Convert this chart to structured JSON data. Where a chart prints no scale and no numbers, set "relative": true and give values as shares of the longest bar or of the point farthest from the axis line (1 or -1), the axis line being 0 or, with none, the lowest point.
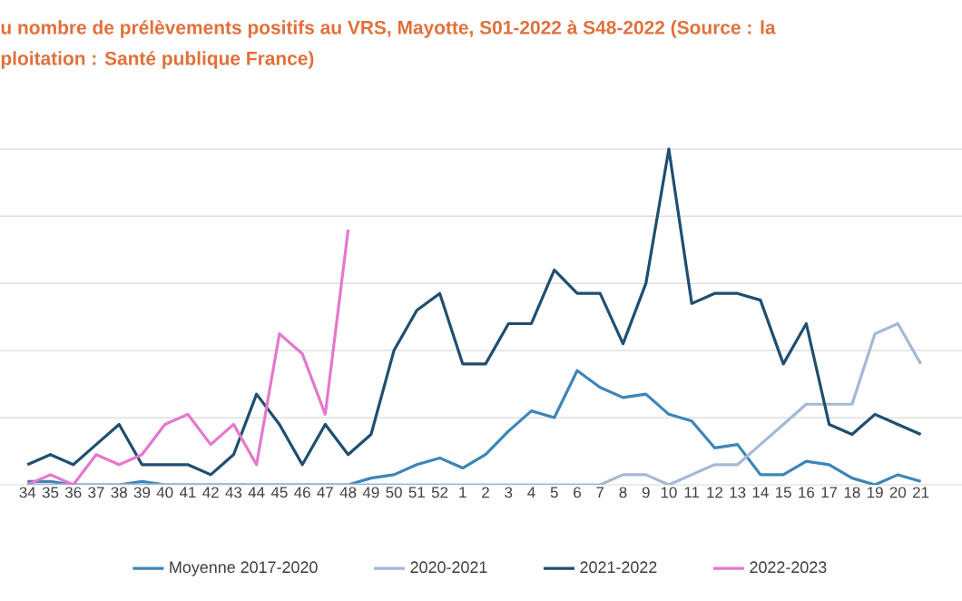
{
  "chart_data": {
    "type": "line",
    "title": "u nombre de prélèvements positifs au VRS, Mayotte, S01-2022 à S48-2022 (Source : la",
    "subtitle": "ploitation : Santé publique France)",
    "categories": [
      "34",
      "35",
      "36",
      "37",
      "38",
      "39",
      "40",
      "41",
      "42",
      "43",
      "44",
      "45",
      "46",
      "47",
      "48",
      "49",
      "50",
      "51",
      "52",
      "1",
      "2",
      "3",
      "4",
      "5",
      "6",
      "7",
      "8",
      "9",
      "10",
      "11",
      "12",
      "13",
      "14",
      "15",
      "16",
      "17",
      "18",
      "19",
      "20",
      "21"
    ],
    "relative": true,
    "grid": "y",
    "legend": "bottom",
    "series": [
      {
        "name": "Moyenne 2017-2020",
        "color": "#3d85b8",
        "values": [
          0.01,
          0.01,
          0,
          0,
          0,
          0.01,
          0,
          0,
          0,
          0,
          0,
          0,
          0,
          0,
          0,
          0.02,
          0.03,
          0.06,
          0.08,
          0.05,
          0.09,
          0.16,
          0.22,
          0.2,
          0.34,
          0.29,
          0.26,
          0.27,
          0.21,
          0.19,
          0.11,
          0.12,
          0.03,
          0.03,
          0.07,
          0.06,
          0.02,
          0,
          0.03,
          0.01
        ]
      },
      {
        "name": "2020-2021",
        "color": "#a3b9d6",
        "values": [
          0,
          0,
          0,
          0,
          0,
          0,
          0,
          0,
          0,
          0,
          0,
          0,
          0,
          0,
          0,
          0,
          0,
          0,
          0,
          0,
          0,
          0,
          0,
          0,
          0,
          0,
          0.03,
          0.03,
          0,
          0.03,
          0.06,
          0.06,
          0.12,
          0.18,
          0.24,
          0.24,
          0.24,
          0.45,
          0.48,
          0.36
        ]
      },
      {
        "name": "2021-2022",
        "color": "#1f4e70",
        "values": [
          0.06,
          0.09,
          0.06,
          0.12,
          0.18,
          0.06,
          0.06,
          0.06,
          0.03,
          0.09,
          0.27,
          0.18,
          0.06,
          0.18,
          0.09,
          0.15,
          0.4,
          0.52,
          0.57,
          0.36,
          0.36,
          0.48,
          0.48,
          0.64,
          0.57,
          0.57,
          0.42,
          0.6,
          1,
          0.54,
          0.57,
          0.57,
          0.55,
          0.36,
          0.48,
          0.18,
          0.15,
          0.21,
          0.18,
          0.15
        ]
      },
      {
        "name": "2022-2023",
        "color": "#e577cf",
        "values": [
          0,
          0.03,
          0,
          0.09,
          0.06,
          0.09,
          0.18,
          0.21,
          0.12,
          0.18,
          0.06,
          0.45,
          0.39,
          0.21,
          0.76,
          null,
          null,
          null,
          null,
          null,
          null,
          null,
          null,
          null,
          null,
          null,
          null,
          null,
          null,
          null,
          null,
          null,
          null,
          null,
          null,
          null,
          null,
          null,
          null,
          null
        ]
      }
    ]
  }
}
